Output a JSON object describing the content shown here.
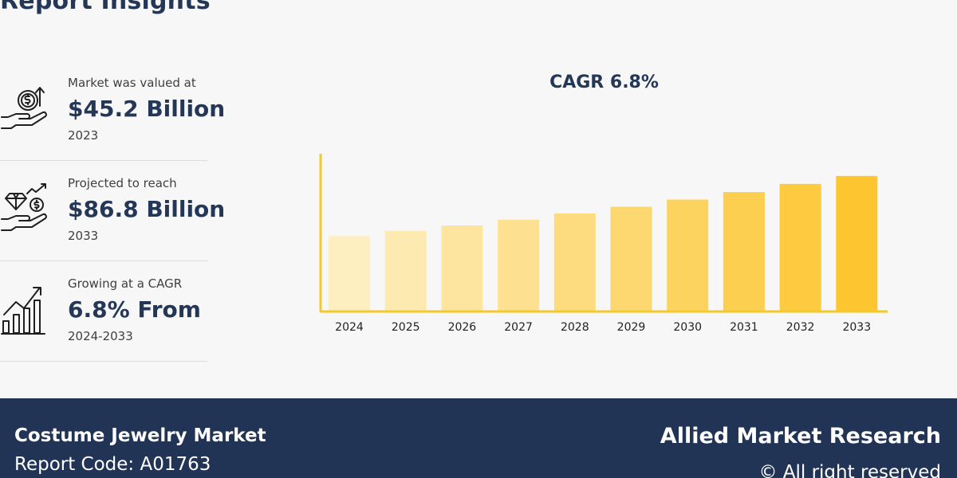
{
  "header": {
    "title": "Report Insights"
  },
  "stats": [
    {
      "label": "Market was valued at",
      "value": "$45.2 Billion",
      "sub": "2023",
      "icon": "money-hand-icon"
    },
    {
      "label": "Projected to reach",
      "value": "$86.8 Billion",
      "sub": "2033",
      "icon": "diamond-hand-icon"
    },
    {
      "label": "Growing at a CAGR",
      "value": "6.8% From",
      "sub": "2024-2033",
      "icon": "growth-chart-icon"
    }
  ],
  "chart_data": {
    "type": "bar",
    "title": "CAGR 6.8%",
    "categories": [
      "2024",
      "2025",
      "2026",
      "2027",
      "2028",
      "2029",
      "2030",
      "2031",
      "2032",
      "2033"
    ],
    "values": [
      48.3,
      51.6,
      55.1,
      58.8,
      62.8,
      67.1,
      71.7,
      76.5,
      81.7,
      86.8
    ],
    "xlabel": "",
    "ylabel": "",
    "ylim": [
      0,
      100
    ],
    "grid": false,
    "colors": [
      "#fdefc0",
      "#fdeab0",
      "#fde5a0",
      "#fde190",
      "#fddc80",
      "#fdd870",
      "#fdd360",
      "#fdcf50",
      "#fdca40",
      "#fdc630"
    ],
    "axis_color": "#f4c928"
  },
  "footer": {
    "market": "Costume Jewelry Market",
    "report_code": "Report Code: A01763",
    "brand": "Allied Market Research",
    "rights": "© All right reserved"
  }
}
